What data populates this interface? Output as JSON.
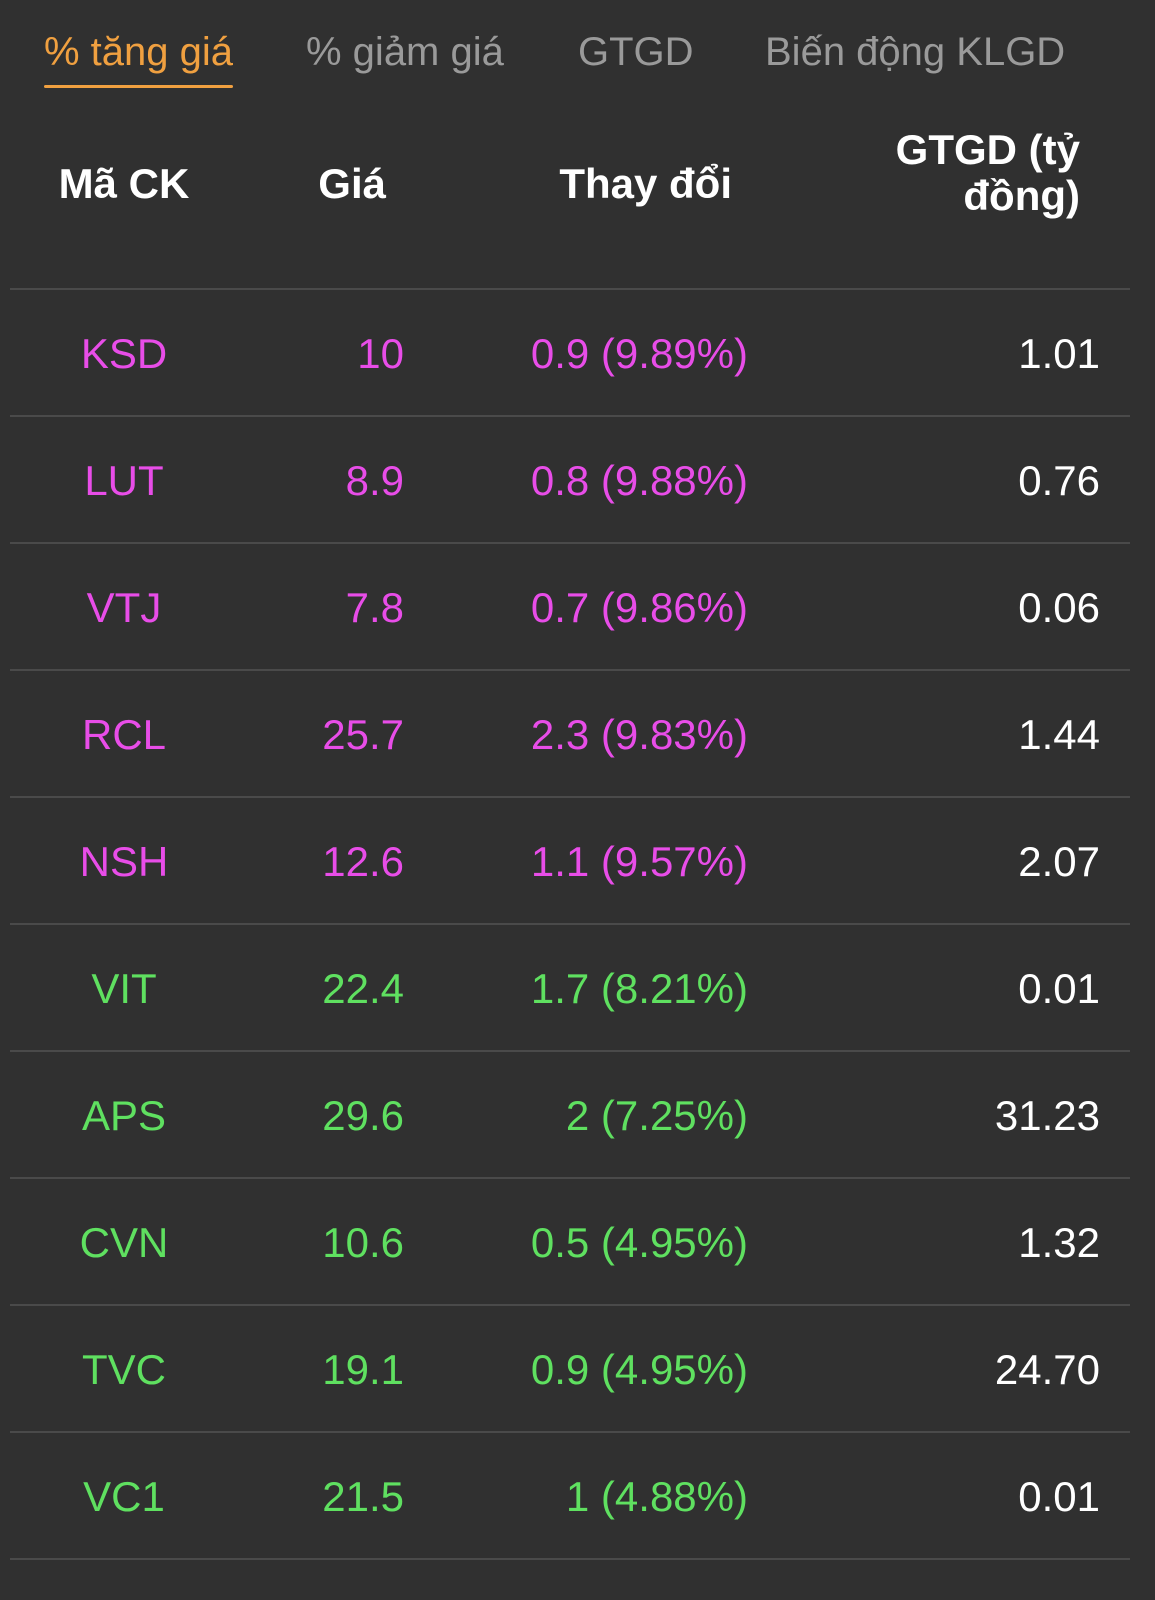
{
  "tabs": [
    {
      "label": "% tăng giá",
      "active": true
    },
    {
      "label": "% giảm giá",
      "active": false
    },
    {
      "label": "GTGD",
      "active": false
    },
    {
      "label": "Biến động KLGD",
      "active": false
    }
  ],
  "columns": {
    "symbol": "Mã CK",
    "price": "Giá",
    "change": "Thay đổi",
    "value_line1": "GTGD (tỷ",
    "value_line2": "đồng)"
  },
  "colors": {
    "accent": "#f0a040",
    "ceiling": "#e84de8",
    "increase": "#5fe060",
    "background": "#303030"
  },
  "rows": [
    {
      "symbol": "KSD",
      "price": "10",
      "change": "0.9 (9.89%)",
      "value": "1.01",
      "status": "ceil"
    },
    {
      "symbol": "LUT",
      "price": "8.9",
      "change": "0.8 (9.88%)",
      "value": "0.76",
      "status": "ceil"
    },
    {
      "symbol": "VTJ",
      "price": "7.8",
      "change": "0.7 (9.86%)",
      "value": "0.06",
      "status": "ceil"
    },
    {
      "symbol": "RCL",
      "price": "25.7",
      "change": "2.3 (9.83%)",
      "value": "1.44",
      "status": "ceil"
    },
    {
      "symbol": "NSH",
      "price": "12.6",
      "change": "1.1 (9.57%)",
      "value": "2.07",
      "status": "ceil"
    },
    {
      "symbol": "VIT",
      "price": "22.4",
      "change": "1.7 (8.21%)",
      "value": "0.01",
      "status": "up"
    },
    {
      "symbol": "APS",
      "price": "29.6",
      "change": "2 (7.25%)",
      "value": "31.23",
      "status": "up"
    },
    {
      "symbol": "CVN",
      "price": "10.6",
      "change": "0.5 (4.95%)",
      "value": "1.32",
      "status": "up"
    },
    {
      "symbol": "TVC",
      "price": "19.1",
      "change": "0.9 (4.95%)",
      "value": "24.70",
      "status": "up"
    },
    {
      "symbol": "VC1",
      "price": "21.5",
      "change": "1 (4.88%)",
      "value": "0.01",
      "status": "up"
    }
  ]
}
